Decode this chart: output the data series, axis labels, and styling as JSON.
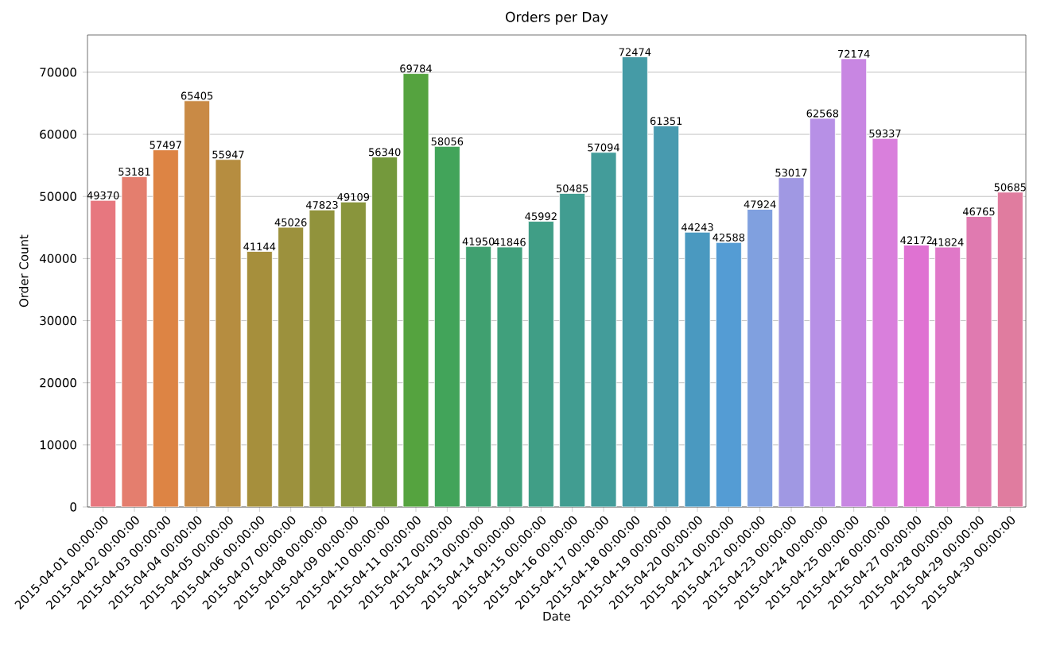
{
  "chart_data": {
    "type": "bar",
    "title": "Orders per Day",
    "xlabel": "Date",
    "ylabel": "Order Count",
    "categories": [
      "2015-04-01 00:00:00",
      "2015-04-02 00:00:00",
      "2015-04-03 00:00:00",
      "2015-04-04 00:00:00",
      "2015-04-05 00:00:00",
      "2015-04-06 00:00:00",
      "2015-04-07 00:00:00",
      "2015-04-08 00:00:00",
      "2015-04-09 00:00:00",
      "2015-04-10 00:00:00",
      "2015-04-11 00:00:00",
      "2015-04-12 00:00:00",
      "2015-04-13 00:00:00",
      "2015-04-14 00:00:00",
      "2015-04-15 00:00:00",
      "2015-04-16 00:00:00",
      "2015-04-17 00:00:00",
      "2015-04-18 00:00:00",
      "2015-04-19 00:00:00",
      "2015-04-20 00:00:00",
      "2015-04-21 00:00:00",
      "2015-04-22 00:00:00",
      "2015-04-23 00:00:00",
      "2015-04-24 00:00:00",
      "2015-04-25 00:00:00",
      "2015-04-26 00:00:00",
      "2015-04-27 00:00:00",
      "2015-04-28 00:00:00",
      "2015-04-29 00:00:00",
      "2015-04-30 00:00:00"
    ],
    "values": [
      49370,
      53181,
      57497,
      65405,
      55947,
      41144,
      45026,
      47823,
      49109,
      56340,
      69784,
      58056,
      41950,
      41846,
      45992,
      50485,
      57094,
      72474,
      61351,
      44243,
      42588,
      47924,
      53017,
      62568,
      72174,
      59337,
      42172,
      41824,
      46765,
      50685
    ],
    "colors": [
      "#e7777f",
      "#e47e6e",
      "#dd8444",
      "#c98a45",
      "#b68d40",
      "#a68f3c",
      "#9c913d",
      "#91933c",
      "#89953c",
      "#74993c",
      "#55a33f",
      "#42a45a",
      "#40a070",
      "#40a07c",
      "#409e86",
      "#419d91",
      "#439c9a",
      "#459ba6",
      "#489aaf",
      "#4a99c0",
      "#549cd4",
      "#80a0df",
      "#a098e3",
      "#b790e6",
      "#c886e2",
      "#d97fdc",
      "#df72d2",
      "#e078c8",
      "#e07ab0",
      "#e07c9f"
    ],
    "data_labels": true,
    "grid": "y",
    "ylim": [
      0,
      76000
    ],
    "yticks": [
      0,
      10000,
      20000,
      30000,
      40000,
      50000,
      60000,
      70000
    ]
  }
}
